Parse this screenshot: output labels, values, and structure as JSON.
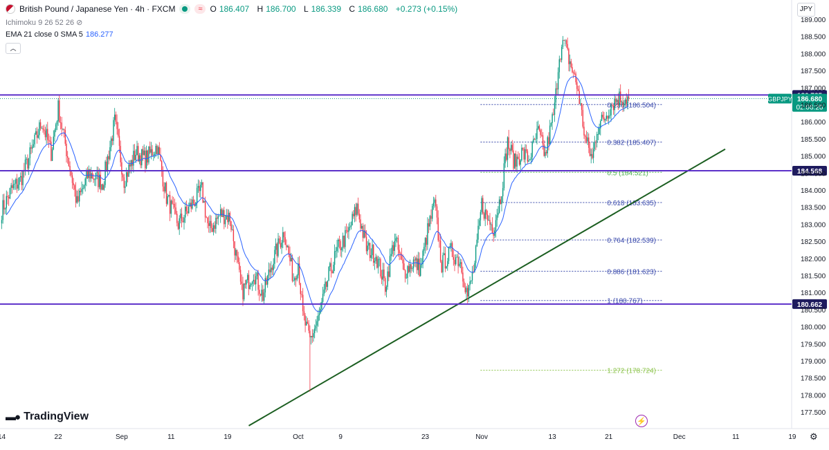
{
  "header": {
    "symbol": "British Pound / Japanese Yen · 4h · FXCM",
    "ohlc": [
      {
        "k": "O",
        "v": "186.407"
      },
      {
        "k": "H",
        "v": "186.700"
      },
      {
        "k": "L",
        "v": "186.339"
      },
      {
        "k": "C",
        "v": "186.680"
      }
    ],
    "change": "+0.273 (+0.15%)",
    "indicator1": "Ichimoku 9 26 52 26",
    "indicator2_label": "EMA 21 close 0 SMA 5",
    "indicator2_value": "186.277"
  },
  "currency": "JPY",
  "logo": "TradingView",
  "colors": {
    "up": "#089981",
    "down": "#f23645",
    "level": "#5b2fc9",
    "trend": "#1b5e20",
    "ema": "#2962ff",
    "fib": "#3949ab",
    "fib_ext": "#8bc34a"
  },
  "chart_data": {
    "type": "candlestick",
    "ylim": [
      177.0,
      189.2
    ],
    "y_ticks": [
      "189.000",
      "188.500",
      "188.000",
      "187.500",
      "187.000",
      "186.500",
      "186.000",
      "185.500",
      "185.000",
      "184.500",
      "184.000",
      "183.500",
      "183.000",
      "182.500",
      "182.000",
      "181.500",
      "181.000",
      "180.500",
      "180.000",
      "179.500",
      "179.000",
      "178.500",
      "178.000",
      "177.500"
    ],
    "y_tick_values": [
      189.0,
      188.5,
      188.0,
      187.5,
      187.0,
      186.5,
      186.0,
      185.5,
      185.0,
      184.5,
      184.0,
      183.5,
      183.0,
      182.5,
      182.0,
      181.5,
      181.0,
      180.5,
      180.0,
      179.5,
      179.0,
      178.5,
      178.0,
      177.5
    ],
    "x_ticks": [
      {
        "label": "14",
        "bar": 0
      },
      {
        "label": "22",
        "bar": 48
      },
      {
        "label": "Sep",
        "bar": 102
      },
      {
        "label": "11",
        "bar": 144
      },
      {
        "label": "19",
        "bar": 192
      },
      {
        "label": "Oct",
        "bar": 252
      },
      {
        "label": "9",
        "bar": 288
      },
      {
        "label": "23",
        "bar": 360
      },
      {
        "label": "Nov",
        "bar": 408
      },
      {
        "label": "13",
        "bar": 468
      },
      {
        "label": "21",
        "bar": 516
      },
      {
        "label": "Dec",
        "bar": 576
      },
      {
        "label": "11",
        "bar": 624
      },
      {
        "label": "19",
        "bar": 672
      }
    ],
    "bar_count": 534,
    "anchors": [
      [
        0,
        183.4
      ],
      [
        8,
        184.0
      ],
      [
        16,
        184.3
      ],
      [
        26,
        185.2
      ],
      [
        34,
        186.0
      ],
      [
        42,
        185.1
      ],
      [
        48,
        186.4
      ],
      [
        56,
        185.0
      ],
      [
        64,
        183.6
      ],
      [
        74,
        184.5
      ],
      [
        86,
        184.2
      ],
      [
        96,
        186.0
      ],
      [
        104,
        184.3
      ],
      [
        114,
        185.1
      ],
      [
        122,
        184.9
      ],
      [
        132,
        185.3
      ],
      [
        140,
        183.8
      ],
      [
        150,
        183.0
      ],
      [
        160,
        183.5
      ],
      [
        170,
        184.0
      ],
      [
        176,
        182.8
      ],
      [
        186,
        183.3
      ],
      [
        194,
        183.2
      ],
      [
        204,
        181.0
      ],
      [
        214,
        181.6
      ],
      [
        222,
        180.9
      ],
      [
        230,
        181.9
      ],
      [
        240,
        182.8
      ],
      [
        248,
        181.4
      ],
      [
        252,
        181.9
      ],
      [
        256,
        180.3
      ],
      [
        262,
        179.6
      ],
      [
        270,
        180.3
      ],
      [
        278,
        181.5
      ],
      [
        286,
        182.3
      ],
      [
        294,
        182.7
      ],
      [
        302,
        183.5
      ],
      [
        310,
        182.3
      ],
      [
        318,
        182.1
      ],
      [
        326,
        181.2
      ],
      [
        334,
        182.6
      ],
      [
        342,
        181.6
      ],
      [
        350,
        181.9
      ],
      [
        356,
        181.7
      ],
      [
        362,
        182.8
      ],
      [
        368,
        183.6
      ],
      [
        374,
        181.8
      ],
      [
        382,
        182.2
      ],
      [
        390,
        181.9
      ],
      [
        396,
        180.9
      ],
      [
        402,
        181.8
      ],
      [
        408,
        183.6
      ],
      [
        412,
        183.2
      ],
      [
        418,
        182.9
      ],
      [
        424,
        183.8
      ],
      [
        430,
        185.4
      ],
      [
        436,
        184.8
      ],
      [
        442,
        185.1
      ],
      [
        448,
        184.9
      ],
      [
        456,
        185.7
      ],
      [
        462,
        185.0
      ],
      [
        470,
        186.4
      ],
      [
        474,
        188.0
      ],
      [
        478,
        188.3
      ],
      [
        486,
        187.4
      ],
      [
        490,
        186.9
      ],
      [
        496,
        185.5
      ],
      [
        502,
        184.9
      ],
      [
        506,
        185.8
      ],
      [
        512,
        186.1
      ],
      [
        518,
        186.5
      ],
      [
        524,
        186.7
      ],
      [
        533,
        186.68
      ]
    ],
    "last_close": 186.68,
    "ema_value": 186.277,
    "levels": [
      {
        "value": 186.785,
        "label": "186.785"
      },
      {
        "value": 184.568,
        "label": "184.568"
      },
      {
        "value": 180.662,
        "label": "180.662"
      }
    ],
    "current_price": {
      "symbol": "GBPJPY",
      "value": "186.680",
      "countdown": "02:06:20"
    },
    "trendline": {
      "from": {
        "bar": 210,
        "value": 177.1
      },
      "to": {
        "bar": 615,
        "value": 185.2
      }
    },
    "fib": {
      "start_bar": 407,
      "end_bar": 526,
      "levels": [
        {
          "ratio": "0.236",
          "value": 186.504,
          "label": "0.236 (186.504)"
        },
        {
          "ratio": "0.382",
          "value": 185.407,
          "label": "0.382 (185.407)"
        },
        {
          "ratio": "0.5",
          "value": 184.521,
          "label": "0.5 (184.521)"
        },
        {
          "ratio": "0.618",
          "value": 183.635,
          "label": "0.618 (183.635)"
        },
        {
          "ratio": "0.764",
          "value": 182.539,
          "label": "0.764 (182.539)"
        },
        {
          "ratio": "0.886",
          "value": 181.623,
          "label": "0.886 (181.623)"
        },
        {
          "ratio": "1",
          "value": 180.767,
          "label": "1 (180.767)"
        },
        {
          "ratio": "1.272",
          "value": 178.724,
          "label": "1.272 (178.724)"
        }
      ]
    }
  }
}
